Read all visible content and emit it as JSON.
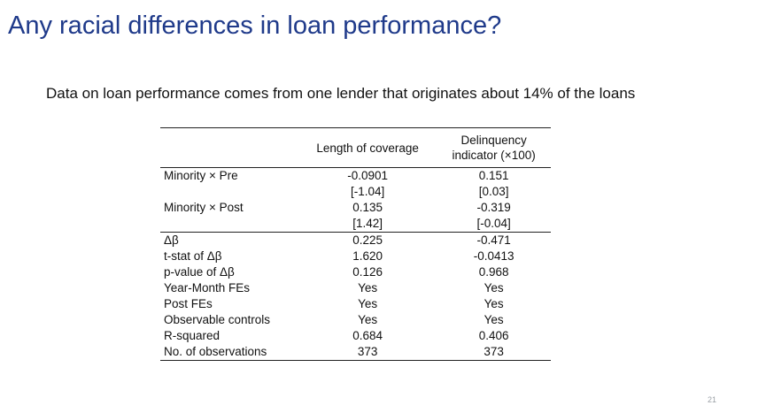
{
  "slide": {
    "title": "Any racial differences in loan performance?",
    "body": "Data on loan performance comes from one lender that originates about 14% of the loans",
    "page_number": "21"
  },
  "table": {
    "columns": {
      "col1": "Length of coverage",
      "col2_line1": "Delinquency",
      "col2_line2": "indicator (×100)"
    },
    "rows": [
      {
        "label": "Minority × Pre",
        "c1": "-0.0901",
        "c2": "0.151"
      },
      {
        "label": "",
        "c1": "[-1.04]",
        "c2": "[0.03]"
      },
      {
        "label": "Minority × Post",
        "c1": "0.135",
        "c2": "-0.319"
      },
      {
        "label": "",
        "c1": "[1.42]",
        "c2": "[-0.04]"
      },
      {
        "label": "Δβ",
        "c1": "0.225",
        "c2": "-0.471"
      },
      {
        "label": "t-stat of Δβ",
        "c1": "1.620",
        "c2": "-0.0413"
      },
      {
        "label": "p-value of Δβ",
        "c1": "0.126",
        "c2": "0.968"
      },
      {
        "label": "Year-Month FEs",
        "c1": "Yes",
        "c2": "Yes"
      },
      {
        "label": "Post FEs",
        "c1": "Yes",
        "c2": "Yes"
      },
      {
        "label": "Observable controls",
        "c1": "Yes",
        "c2": "Yes"
      },
      {
        "label": "R-squared",
        "c1": "0.684",
        "c2": "0.406"
      },
      {
        "label": "No. of observations",
        "c1": "373",
        "c2": "373"
      }
    ]
  }
}
